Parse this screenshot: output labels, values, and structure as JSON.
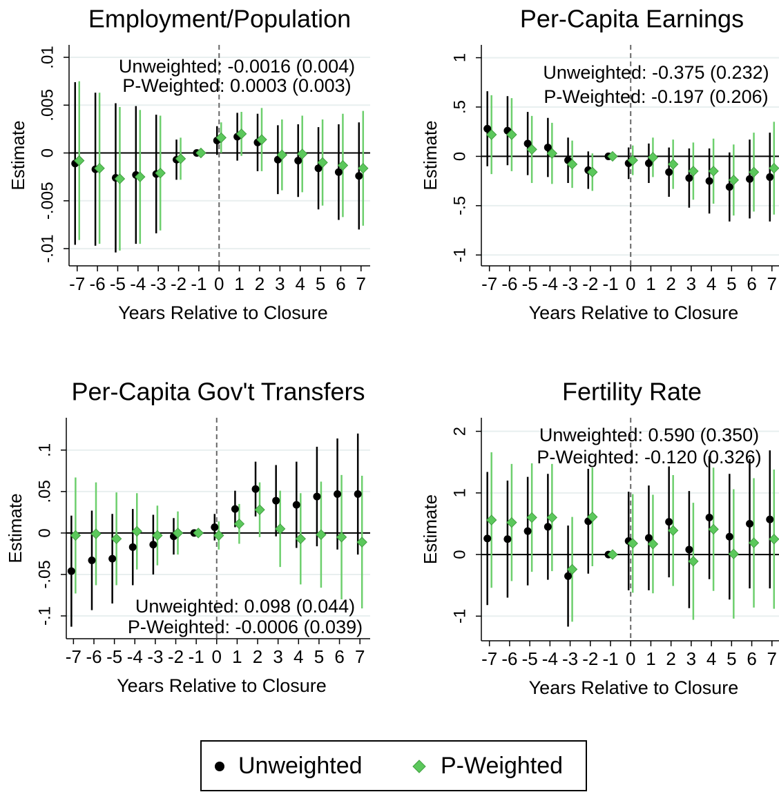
{
  "chart_data": [
    {
      "type": "scatter",
      "title": "Employment/Population",
      "ylabel": "Estimate",
      "xlabel": "Years Relative to Closure",
      "annotations": [
        "Unweighted: -0.0016 (0.004)",
        "P-Weighted: 0.0003 (0.003)"
      ],
      "x": [
        -7,
        -6,
        -5,
        -4,
        -3,
        -2,
        -1,
        0,
        1,
        2,
        3,
        4,
        5,
        6,
        7
      ],
      "xlim": [
        -7.4,
        7.45
      ],
      "xticks": [
        -7,
        -6,
        -5,
        -4,
        -3,
        -2,
        -1,
        0,
        1,
        2,
        3,
        4,
        5,
        6,
        7
      ],
      "ylim": [
        -0.0118,
        0.0113
      ],
      "yticks": [
        {
          "value": -0.01,
          "label": "-.01"
        },
        {
          "value": -0.005,
          "label": "-.005"
        },
        0,
        {
          "value": 0.005,
          "label": ".005"
        },
        {
          "value": 0.01,
          "label": ".01"
        }
      ],
      "grid": true,
      "hline": 0,
      "vline": 0,
      "legend": "bottom",
      "series": [
        {
          "name": "Unweighted",
          "color": "#000000",
          "marker": "circle",
          "values": [
            -0.0011,
            -0.0017,
            -0.0026,
            -0.0023,
            -0.0022,
            -0.0007,
            0,
            0.0013,
            0.0017,
            0.0011,
            -0.0007,
            -0.0008,
            -0.0016,
            -0.002,
            -0.0024
          ],
          "errors": [
            0.0085,
            0.008,
            0.0078,
            0.0072,
            0.0062,
            0.0021,
            0,
            0.0015,
            0.0025,
            0.003,
            0.0036,
            0.0038,
            0.0043,
            0.005,
            0.0056
          ]
        },
        {
          "name": "P-Weighted",
          "color": "#5cc85c",
          "marker": "diamond",
          "values": [
            -0.0008,
            -0.0016,
            -0.0027,
            -0.0025,
            -0.0021,
            -0.0006,
            0,
            0.0016,
            0.002,
            0.0014,
            -0.0002,
            -0.0001,
            -0.001,
            -0.0013,
            -0.0016
          ],
          "errors": [
            0.0083,
            0.0079,
            0.0075,
            0.007,
            0.006,
            0.0022,
            0,
            0.0016,
            0.0023,
            0.0033,
            0.0037,
            0.004,
            0.0045,
            0.0054,
            0.006
          ]
        }
      ]
    },
    {
      "type": "scatter",
      "title": "Per-Capita Earnings",
      "ylabel": "Estimate",
      "xlabel": "Years Relative to Closure",
      "annotations": [
        "Unweighted: -0.375 (0.232)",
        "P-Weighted: -0.197 (0.206)"
      ],
      "x": [
        -7,
        -6,
        -5,
        -4,
        -3,
        -2,
        -1,
        0,
        1,
        2,
        3,
        4,
        5,
        6,
        7
      ],
      "xlim": [
        -7.4,
        7.35
      ],
      "xticks": [
        -7,
        -6,
        -5,
        -4,
        -3,
        -2,
        -1,
        0,
        1,
        2,
        3,
        4,
        5,
        6,
        7
      ],
      "ylim": [
        -1.11,
        1.13
      ],
      "yticks": [
        -1,
        {
          "value": -0.5,
          "label": "-.5"
        },
        0,
        {
          "value": 0.5,
          "label": ".5"
        },
        1
      ],
      "grid": true,
      "hline": 0,
      "vline": 0,
      "series": [
        {
          "name": "Unweighted",
          "color": "#000000",
          "marker": "circle",
          "values": [
            0.28,
            0.26,
            0.13,
            0.09,
            -0.04,
            -0.14,
            0,
            -0.07,
            -0.07,
            -0.16,
            -0.22,
            -0.25,
            -0.31,
            -0.23,
            -0.21
          ],
          "errors": [
            0.38,
            0.35,
            0.32,
            0.3,
            0.23,
            0.19,
            0,
            0.16,
            0.2,
            0.25,
            0.3,
            0.33,
            0.35,
            0.4,
            0.45
          ]
        },
        {
          "name": "P-Weighted",
          "color": "#5cc85c",
          "marker": "diamond",
          "values": [
            0.22,
            0.22,
            0.07,
            0.03,
            -0.08,
            -0.16,
            0,
            -0.04,
            -0.01,
            -0.08,
            -0.15,
            -0.15,
            -0.24,
            -0.16,
            -0.12
          ],
          "errors": [
            0.4,
            0.37,
            0.34,
            0.31,
            0.24,
            0.19,
            0,
            0.15,
            0.2,
            0.25,
            0.29,
            0.33,
            0.36,
            0.4,
            0.47
          ]
        }
      ]
    },
    {
      "type": "scatter",
      "title": "Per-Capita Gov't Transfers",
      "ylabel": "Estimate",
      "xlabel": "Years Relative to Closure",
      "annotations": [
        "Unweighted: 0.098 (0.044)",
        "P-Weighted: -0.0006 (0.039)"
      ],
      "x": [
        -7,
        -6,
        -5,
        -4,
        -3,
        -2,
        -1,
        0,
        1,
        2,
        3,
        4,
        5,
        6,
        7
      ],
      "xlim": [
        -7.35,
        7.5
      ],
      "xticks": [
        -7,
        -6,
        -5,
        -4,
        -3,
        -2,
        -1,
        0,
        1,
        2,
        3,
        4,
        5,
        6,
        7
      ],
      "ylim": [
        -0.1275,
        0.139
      ],
      "yticks": [
        {
          "value": -0.1,
          "label": "-.1"
        },
        {
          "value": -0.05,
          "label": "-.05"
        },
        0,
        {
          "value": 0.05,
          "label": ".05"
        },
        {
          "value": 0.1,
          "label": ".1"
        }
      ],
      "grid": true,
      "hline": 0,
      "vline": 0,
      "series": [
        {
          "name": "Unweighted",
          "color": "#000000",
          "marker": "circle",
          "values": [
            -0.046,
            -0.033,
            -0.031,
            -0.017,
            -0.014,
            -0.004,
            0,
            0.007,
            0.029,
            0.053,
            0.039,
            0.034,
            0.044,
            0.047,
            0.047
          ],
          "errors": [
            0.067,
            0.06,
            0.054,
            0.046,
            0.036,
            0.022,
            0,
            0.016,
            0.022,
            0.033,
            0.043,
            0.052,
            0.06,
            0.067,
            0.073
          ]
        },
        {
          "name": "P-Weighted",
          "color": "#5cc85c",
          "marker": "diamond",
          "values": [
            -0.003,
            -0.001,
            -0.007,
            0.002,
            -0.003,
            0,
            0,
            -0.003,
            0.011,
            0.028,
            0.005,
            -0.007,
            -0.002,
            -0.005,
            -0.011
          ],
          "errors": [
            0.07,
            0.062,
            0.056,
            0.046,
            0.036,
            0.026,
            0,
            0.017,
            0.024,
            0.033,
            0.046,
            0.055,
            0.064,
            0.075,
            0.08
          ]
        }
      ]
    },
    {
      "type": "scatter",
      "title": "Fertility Rate",
      "ylabel": "Estimate",
      "xlabel": "Years Relative to Closure",
      "annotations": [
        "Unweighted: 0.590 (0.350)",
        "P-Weighted: -0.120 (0.326)"
      ],
      "x": [
        -7,
        -6,
        -5,
        -4,
        -3,
        -2,
        -1,
        0,
        1,
        2,
        3,
        4,
        5,
        6,
        7
      ],
      "xlim": [
        -7.4,
        7.35
      ],
      "xticks": [
        -7,
        -6,
        -5,
        -4,
        -3,
        -2,
        -1,
        0,
        1,
        2,
        3,
        4,
        5,
        6,
        7
      ],
      "ylim": [
        -1.4,
        2.22
      ],
      "yticks": [
        -1,
        0,
        1,
        2
      ],
      "grid": true,
      "hline": 0,
      "vline": 0,
      "series": [
        {
          "name": "Unweighted",
          "color": "#000000",
          "marker": "circle",
          "values": [
            0.26,
            0.25,
            0.38,
            0.45,
            -0.35,
            0.54,
            0,
            0.22,
            0.27,
            0.53,
            0.08,
            0.6,
            0.29,
            0.5,
            0.57
          ],
          "errors": [
            1.08,
            0.95,
            0.88,
            0.86,
            0.82,
            0.85,
            0,
            0.8,
            0.85,
            0.9,
            0.95,
            1.0,
            1.02,
            1.05,
            1.12
          ]
        },
        {
          "name": "P-Weighted",
          "color": "#5cc85c",
          "marker": "diamond",
          "values": [
            0.56,
            0.52,
            0.6,
            0.6,
            -0.24,
            0.61,
            0,
            0.18,
            0.17,
            0.39,
            -0.11,
            0.41,
            0.01,
            0.19,
            0.25
          ],
          "errors": [
            1.1,
            0.95,
            0.88,
            0.87,
            0.85,
            0.8,
            0,
            0.8,
            0.8,
            0.9,
            0.95,
            1.0,
            1.05,
            1.05,
            1.13
          ]
        }
      ]
    }
  ]
}
